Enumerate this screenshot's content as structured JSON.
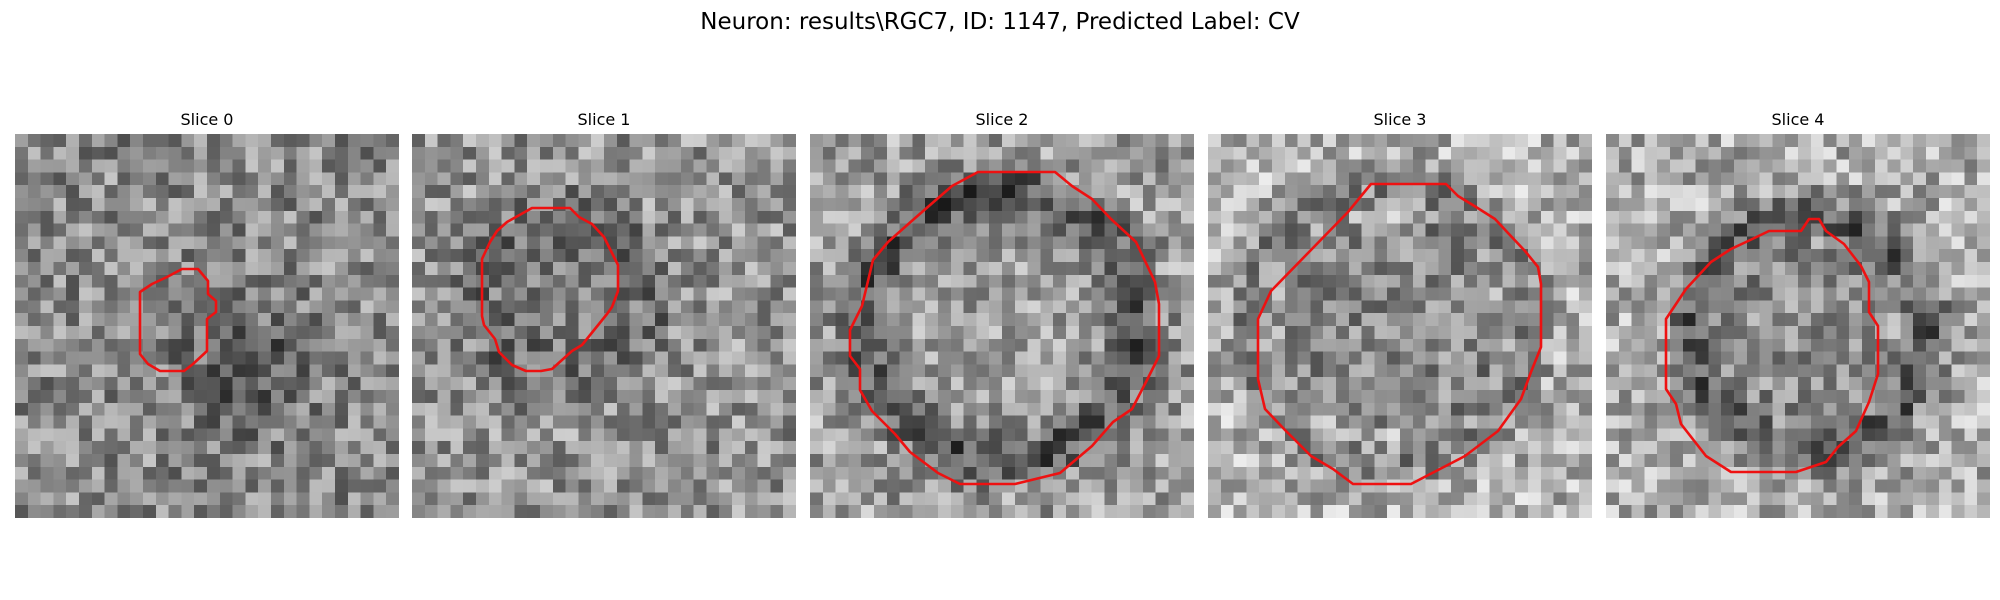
{
  "figure": {
    "title": "Neuron: results\\RGC7, ID: 1147, Predicted Label: CV"
  },
  "panels": [
    {
      "title": "Slice 0",
      "image": "grayscale-microscopy-slice-0"
    },
    {
      "title": "Slice 1",
      "image": "grayscale-microscopy-slice-1"
    },
    {
      "title": "Slice 2",
      "image": "grayscale-microscopy-slice-2"
    },
    {
      "title": "Slice 3",
      "image": "grayscale-microscopy-slice-3"
    },
    {
      "title": "Slice 4",
      "image": "grayscale-microscopy-slice-4"
    }
  ],
  "colors": {
    "contour": "#ee1111",
    "background": "#ffffff"
  }
}
